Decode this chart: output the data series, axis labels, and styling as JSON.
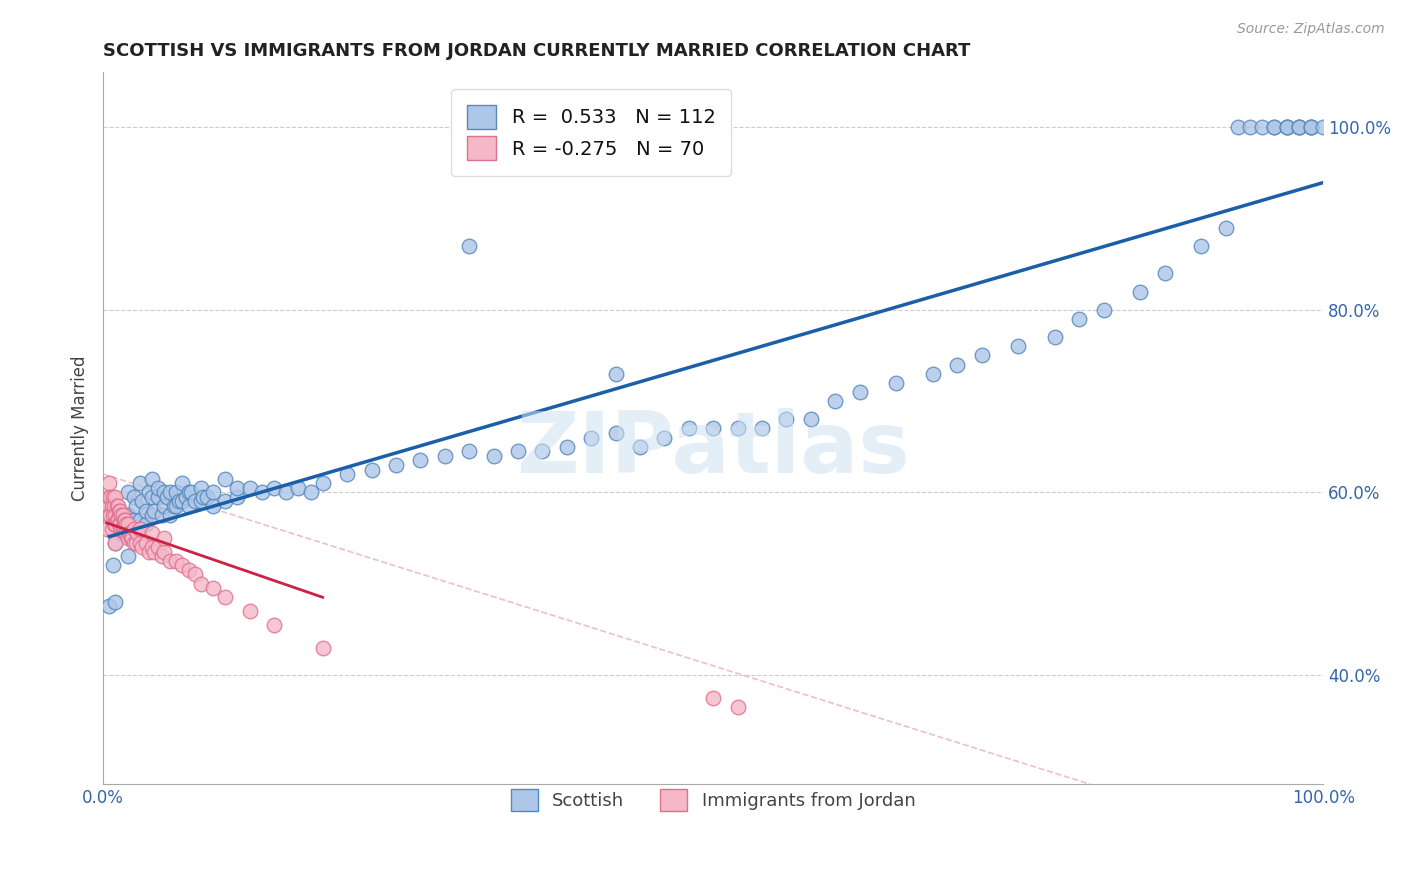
{
  "title": "SCOTTISH VS IMMIGRANTS FROM JORDAN CURRENTLY MARRIED CORRELATION CHART",
  "source": "Source: ZipAtlas.com",
  "ylabel": "Currently Married",
  "xlim": [
    0.0,
    1.0
  ],
  "ylim": [
    0.28,
    1.06
  ],
  "x_ticks": [
    0.0,
    1.0
  ],
  "x_tick_labels": [
    "0.0%",
    "100.0%"
  ],
  "y_ticks": [
    0.4,
    0.6,
    0.8,
    1.0
  ],
  "y_tick_labels": [
    "40.0%",
    "60.0%",
    "80.0%",
    "100.0%"
  ],
  "legend_label1": "Scottish",
  "legend_label2": "Immigrants from Jordan",
  "blue_color": "#aec6e8",
  "blue_edge": "#5588bb",
  "pink_color": "#f5b8c8",
  "pink_edge": "#e07090",
  "trend_blue": "#1a5fa8",
  "trend_pink": "#cc2244",
  "trend_dashed_color": "#e8b0bf",
  "watermark": "ZIPatlas",
  "r_blue": 0.533,
  "n_blue": 112,
  "r_pink": -0.275,
  "n_pink": 70,
  "blue_scatter_x": [
    0.005,
    0.008,
    0.01,
    0.01,
    0.015,
    0.015,
    0.018,
    0.02,
    0.02,
    0.02,
    0.022,
    0.025,
    0.025,
    0.027,
    0.03,
    0.03,
    0.03,
    0.032,
    0.035,
    0.035,
    0.038,
    0.04,
    0.04,
    0.04,
    0.042,
    0.045,
    0.045,
    0.048,
    0.05,
    0.05,
    0.052,
    0.055,
    0.055,
    0.058,
    0.06,
    0.06,
    0.062,
    0.065,
    0.065,
    0.068,
    0.07,
    0.07,
    0.072,
    0.075,
    0.08,
    0.08,
    0.082,
    0.085,
    0.09,
    0.09,
    0.1,
    0.1,
    0.11,
    0.11,
    0.12,
    0.13,
    0.14,
    0.15,
    0.16,
    0.17,
    0.18,
    0.2,
    0.22,
    0.24,
    0.26,
    0.28,
    0.3,
    0.32,
    0.34,
    0.36,
    0.38,
    0.4,
    0.42,
    0.44,
    0.46,
    0.48,
    0.5,
    0.52,
    0.54,
    0.56,
    0.58,
    0.6,
    0.62,
    0.65,
    0.68,
    0.7,
    0.72,
    0.75,
    0.78,
    0.8,
    0.82,
    0.85,
    0.87,
    0.9,
    0.92,
    0.93,
    0.94,
    0.95,
    0.96,
    0.96,
    0.97,
    0.97,
    0.97,
    0.98,
    0.98,
    0.98,
    0.99,
    0.99,
    0.99,
    1.0,
    0.3,
    0.42
  ],
  "blue_scatter_y": [
    0.475,
    0.52,
    0.48,
    0.545,
    0.555,
    0.575,
    0.56,
    0.53,
    0.575,
    0.6,
    0.565,
    0.57,
    0.595,
    0.585,
    0.55,
    0.57,
    0.61,
    0.59,
    0.565,
    0.58,
    0.6,
    0.575,
    0.595,
    0.615,
    0.58,
    0.595,
    0.605,
    0.575,
    0.585,
    0.6,
    0.595,
    0.575,
    0.6,
    0.585,
    0.585,
    0.6,
    0.59,
    0.59,
    0.61,
    0.595,
    0.585,
    0.6,
    0.6,
    0.59,
    0.59,
    0.605,
    0.595,
    0.595,
    0.585,
    0.6,
    0.59,
    0.615,
    0.595,
    0.605,
    0.605,
    0.6,
    0.605,
    0.6,
    0.605,
    0.6,
    0.61,
    0.62,
    0.625,
    0.63,
    0.635,
    0.64,
    0.645,
    0.64,
    0.645,
    0.645,
    0.65,
    0.66,
    0.665,
    0.65,
    0.66,
    0.67,
    0.67,
    0.67,
    0.67,
    0.68,
    0.68,
    0.7,
    0.71,
    0.72,
    0.73,
    0.74,
    0.75,
    0.76,
    0.77,
    0.79,
    0.8,
    0.82,
    0.84,
    0.87,
    0.89,
    1.0,
    1.0,
    1.0,
    1.0,
    1.0,
    1.0,
    1.0,
    1.0,
    1.0,
    1.0,
    1.0,
    1.0,
    1.0,
    1.0,
    1.0,
    0.87,
    0.73
  ],
  "pink_scatter_x": [
    0.003,
    0.004,
    0.005,
    0.005,
    0.005,
    0.006,
    0.006,
    0.007,
    0.007,
    0.008,
    0.008,
    0.009,
    0.009,
    0.01,
    0.01,
    0.01,
    0.01,
    0.011,
    0.011,
    0.012,
    0.012,
    0.013,
    0.013,
    0.014,
    0.014,
    0.015,
    0.015,
    0.016,
    0.016,
    0.017,
    0.017,
    0.018,
    0.018,
    0.019,
    0.019,
    0.02,
    0.02,
    0.021,
    0.022,
    0.023,
    0.024,
    0.025,
    0.025,
    0.027,
    0.028,
    0.03,
    0.03,
    0.032,
    0.035,
    0.038,
    0.04,
    0.04,
    0.042,
    0.045,
    0.048,
    0.05,
    0.05,
    0.055,
    0.06,
    0.065,
    0.07,
    0.075,
    0.08,
    0.09,
    0.1,
    0.12,
    0.14,
    0.18,
    0.5,
    0.52
  ],
  "pink_scatter_y": [
    0.56,
    0.585,
    0.575,
    0.595,
    0.61,
    0.575,
    0.595,
    0.56,
    0.585,
    0.575,
    0.595,
    0.565,
    0.585,
    0.545,
    0.565,
    0.575,
    0.595,
    0.57,
    0.585,
    0.57,
    0.585,
    0.565,
    0.58,
    0.565,
    0.58,
    0.56,
    0.575,
    0.56,
    0.575,
    0.56,
    0.57,
    0.555,
    0.57,
    0.555,
    0.565,
    0.55,
    0.565,
    0.555,
    0.555,
    0.55,
    0.55,
    0.545,
    0.56,
    0.545,
    0.555,
    0.545,
    0.56,
    0.54,
    0.545,
    0.535,
    0.54,
    0.555,
    0.535,
    0.54,
    0.53,
    0.535,
    0.55,
    0.525,
    0.525,
    0.52,
    0.515,
    0.51,
    0.5,
    0.495,
    0.485,
    0.47,
    0.455,
    0.43,
    0.375,
    0.365
  ]
}
